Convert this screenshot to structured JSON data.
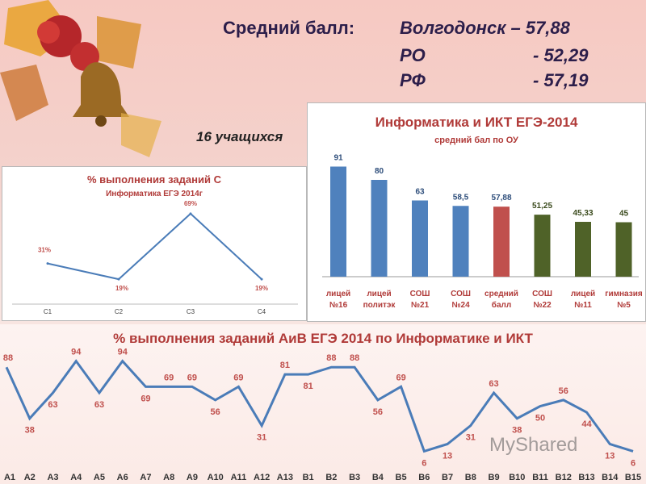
{
  "header": {
    "avg_label": "Средний балл",
    "avg_colon": ":",
    "rows": [
      {
        "name": "Волгодонск",
        "sep": " – ",
        "value": "57,88"
      },
      {
        "name": "РО",
        "sep": "",
        "value": "- 52,29"
      },
      {
        "name": "РФ",
        "sep": "",
        "value": "- 57,19"
      }
    ],
    "students": "16 учащихся"
  },
  "watermark": "MyShared",
  "colors": {
    "blue": "#4f81bd",
    "red": "#c0504d",
    "green": "#4f6228",
    "line": "#4a7cb8",
    "title_red": "#b03a38",
    "label_red": "#c0504d"
  },
  "chart_data": [
    {
      "type": "bar",
      "title": "Информатика и ИКТ ЕГЭ-2014",
      "subtitle": "средний бал по ОУ",
      "categories": [
        [
          "лицей",
          "№16"
        ],
        [
          "лицей",
          "политэк"
        ],
        [
          "СОШ",
          "№21"
        ],
        [
          "СОШ",
          "№24"
        ],
        [
          "средний",
          "балл"
        ],
        [
          "СОШ",
          "№22"
        ],
        [
          "лицей",
          "№11"
        ],
        [
          "гимназия",
          "№5"
        ]
      ],
      "values": [
        91,
        80,
        63,
        58.5,
        57.88,
        51.25,
        45.33,
        45
      ],
      "value_labels": [
        "91",
        "80",
        "63",
        "58,5",
        "57,88",
        "51,25",
        "45,33",
        "45"
      ],
      "bar_colors": [
        "#4f81bd",
        "#4f81bd",
        "#4f81bd",
        "#4f81bd",
        "#c0504d",
        "#4f6228",
        "#4f6228",
        "#4f6228"
      ],
      "ylim": [
        0,
        100
      ]
    },
    {
      "type": "line",
      "title": "% выполнения заданий С",
      "subtitle": "Информатика ЕГЭ 2014г",
      "categories": [
        "C1",
        "C2",
        "C3",
        "C4"
      ],
      "values": [
        31,
        19,
        69,
        19
      ],
      "value_labels": [
        "31%",
        "19%",
        "69%",
        "19%"
      ],
      "ylim": [
        0,
        80
      ]
    },
    {
      "type": "line",
      "title": "% выполнения заданий АиВ ЕГЭ 2014 по Информатике и ИКТ",
      "categories": [
        "A1",
        "A2",
        "A3",
        "A4",
        "A5",
        "A6",
        "A7",
        "A8",
        "A9",
        "A10",
        "A11",
        "A12",
        "A13",
        "B1",
        "B2",
        "B3",
        "B4",
        "B5",
        "B6",
        "B7",
        "B8",
        "B9",
        "B10",
        "B11",
        "B12",
        "B13",
        "B14",
        "B15"
      ],
      "values": [
        88,
        38,
        63,
        94,
        63,
        94,
        69,
        69,
        69,
        56,
        69,
        31,
        81,
        81,
        88,
        88,
        56,
        69,
        6,
        13,
        31,
        63,
        38,
        50,
        56,
        44,
        13,
        6
      ],
      "ylim": [
        0,
        100
      ]
    }
  ]
}
